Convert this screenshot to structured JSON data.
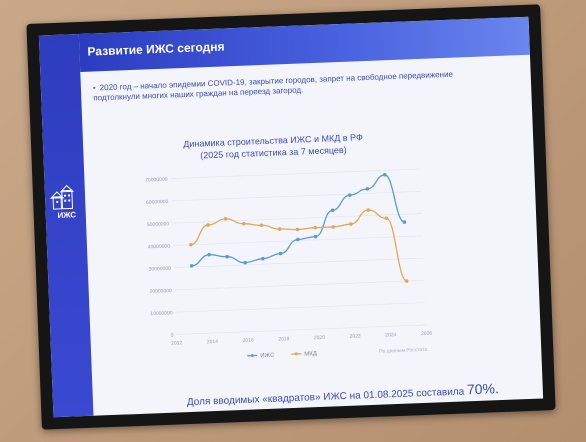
{
  "slide": {
    "title": "Развитие ИЖС сегодня",
    "bullet": "2020 год – начало эпидемии COVID-19, закрытие городов, запрет на свободное передвижение подтолкнули многих наших граждан на переезд загород.",
    "logo_text": "ИЖС",
    "footer_prefix": "Доля вводимых «квадратов» ИЖС на 01.08.2025 составила",
    "footer_value": "70%."
  },
  "chart_data": {
    "type": "line",
    "title": "Динамика строительства ИЖС и МКД в РФ",
    "subtitle": "(2025 год статистика за 7 месяцев)",
    "x_ticks": [
      "2012",
      "2014",
      "2016",
      "2018",
      "2020",
      "2022",
      "2024",
      "2026"
    ],
    "y_ticks": [
      "0",
      "10000000",
      "20000000",
      "30000000",
      "40000000",
      "50000000",
      "60000000",
      "70000000"
    ],
    "xlim": [
      2012,
      2026
    ],
    "ylim": [
      0,
      70000000
    ],
    "grid": true,
    "legend_position": "bottom",
    "series": [
      {
        "name": "ИЖС",
        "color": "#5b9bd5",
        "x": [
          2013,
          2014,
          2015,
          2016,
          2017,
          2018,
          2019,
          2020,
          2021,
          2022,
          2023,
          2024,
          2025
        ],
        "values": [
          30500000,
          35200000,
          34000000,
          31000000,
          32500000,
          34500000,
          40500000,
          41500000,
          53000000,
          59500000,
          62000000,
          68000000,
          46500000
        ]
      },
      {
        "name": "МКД",
        "color": "#e0a95a",
        "x": [
          2013,
          2014,
          2015,
          2016,
          2017,
          2018,
          2019,
          2020,
          2021,
          2022,
          2023,
          2024,
          2025
        ],
        "values": [
          40000000,
          48500000,
          51000000,
          48500000,
          47500000,
          45500000,
          45000000,
          45500000,
          45500000,
          46500000,
          52500000,
          48500000,
          20000000
        ]
      }
    ],
    "source": "По данным Росстата"
  }
}
